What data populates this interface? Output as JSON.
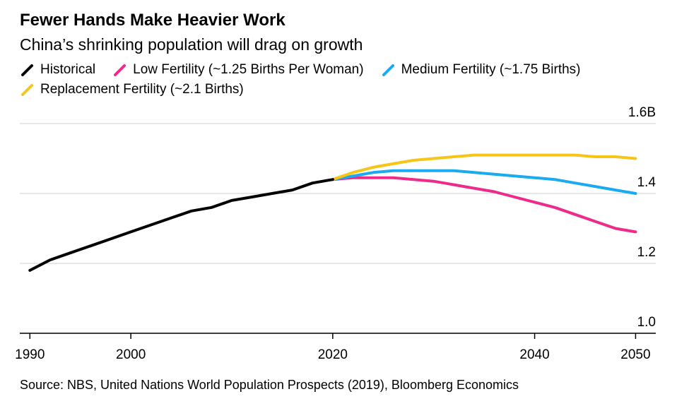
{
  "title": "Fewer Hands Make Heavier Work",
  "subtitle": "China’s shrinking population will drag on growth",
  "source": "Source: NBS, United Nations World Population Prospects (2019), Bloomberg Economics",
  "chart_data": {
    "type": "line",
    "title": "Fewer Hands Make Heavier Work",
    "subtitle": "China’s shrinking population will drag on growth",
    "xlabel": "",
    "ylabel": "",
    "xlim": [
      1989,
      2052
    ],
    "ylim": [
      1.0,
      1.6
    ],
    "x_ticks": [
      1990,
      2000,
      2020,
      2040,
      2050
    ],
    "x_tick_labels": [
      "1990",
      "2000",
      "2020",
      "2040",
      "2050"
    ],
    "y_ticks": [
      1.0,
      1.2,
      1.4,
      1.6
    ],
    "y_tick_labels": [
      "1.0",
      "1.2",
      "1.4",
      "1.6B"
    ],
    "grid": true,
    "legend": "top-left",
    "series": [
      {
        "name": "Historical",
        "color": "#000000",
        "x": [
          1990,
          1992,
          1994,
          1996,
          1998,
          2000,
          2002,
          2004,
          2006,
          2008,
          2010,
          2012,
          2014,
          2016,
          2018,
          2020
        ],
        "y": [
          1.18,
          1.21,
          1.23,
          1.25,
          1.27,
          1.29,
          1.31,
          1.33,
          1.35,
          1.36,
          1.38,
          1.39,
          1.4,
          1.41,
          1.43,
          1.44
        ]
      },
      {
        "name": "Low Fertility (~1.25 Births Per Woman)",
        "color": "#ee2b8a",
        "x": [
          2020,
          2022,
          2024,
          2026,
          2028,
          2030,
          2032,
          2034,
          2036,
          2038,
          2040,
          2042,
          2044,
          2046,
          2048,
          2050
        ],
        "y": [
          1.44,
          1.445,
          1.445,
          1.445,
          1.44,
          1.435,
          1.425,
          1.415,
          1.405,
          1.39,
          1.375,
          1.36,
          1.34,
          1.32,
          1.3,
          1.29
        ]
      },
      {
        "name": "Medium Fertility (~1.75 Births)",
        "color": "#1aaaf0",
        "x": [
          2020,
          2022,
          2024,
          2026,
          2028,
          2030,
          2032,
          2034,
          2036,
          2038,
          2040,
          2042,
          2044,
          2046,
          2048,
          2050
        ],
        "y": [
          1.44,
          1.45,
          1.46,
          1.465,
          1.465,
          1.465,
          1.465,
          1.46,
          1.455,
          1.45,
          1.445,
          1.44,
          1.43,
          1.42,
          1.41,
          1.4
        ]
      },
      {
        "name": "Replacement Fertility (~2.1 Births)",
        "color": "#f5c518",
        "x": [
          2020,
          2022,
          2024,
          2026,
          2028,
          2030,
          2032,
          2034,
          2036,
          2038,
          2040,
          2042,
          2044,
          2046,
          2048,
          2050
        ],
        "y": [
          1.44,
          1.46,
          1.475,
          1.485,
          1.495,
          1.5,
          1.505,
          1.51,
          1.51,
          1.51,
          1.51,
          1.51,
          1.51,
          1.505,
          1.505,
          1.5
        ]
      }
    ]
  }
}
